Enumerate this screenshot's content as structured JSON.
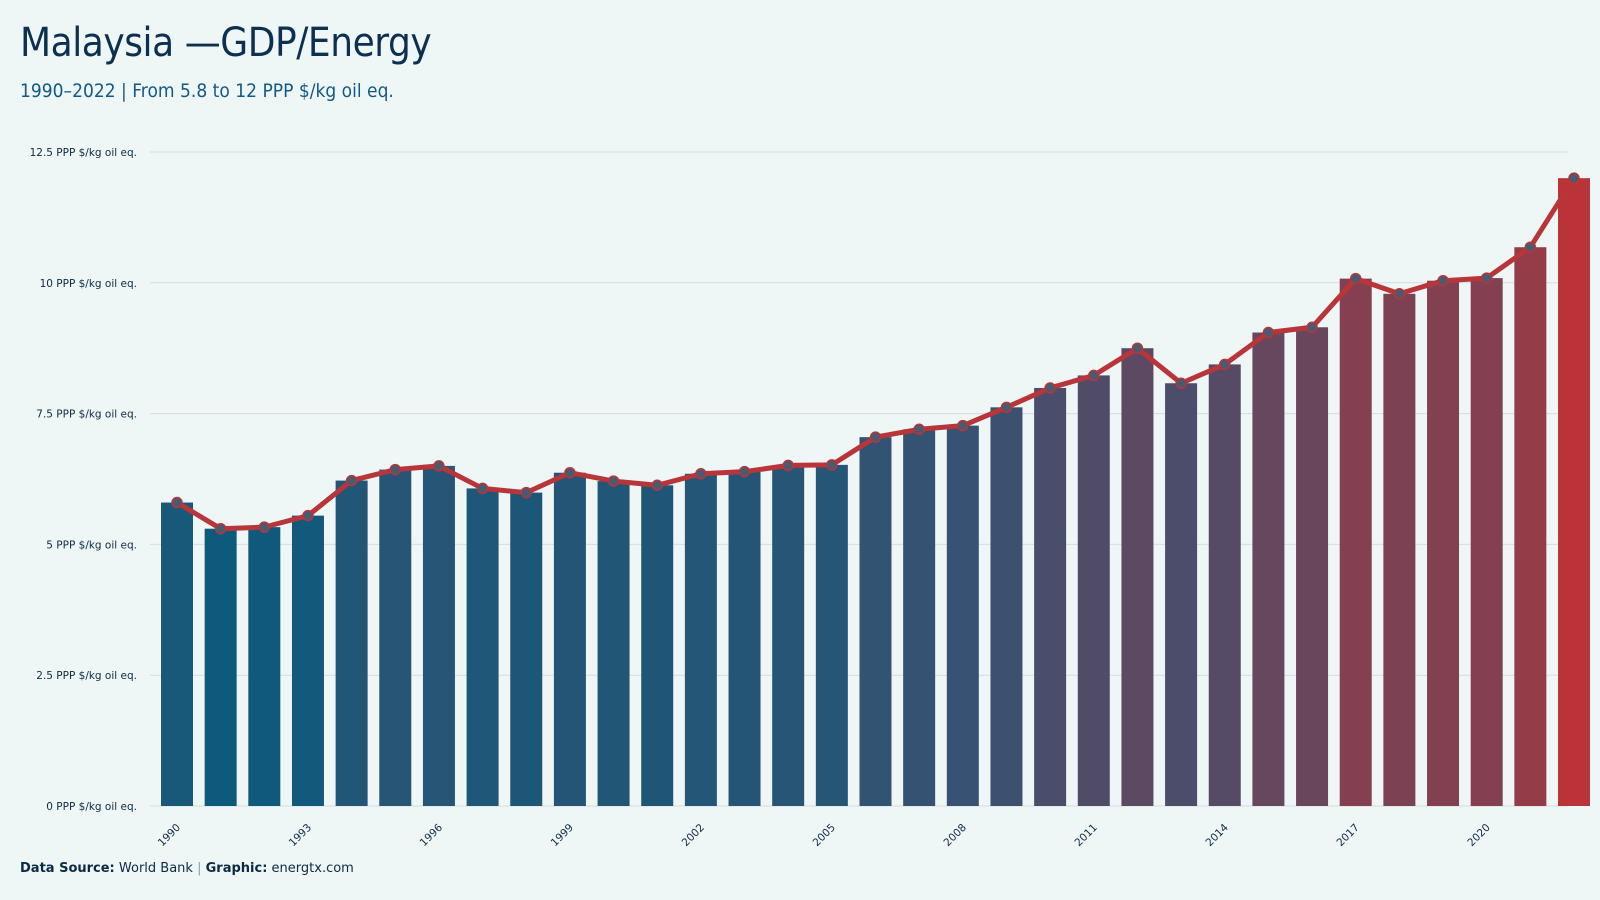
{
  "header": {
    "title": "Malaysia —GDP/Energy",
    "subtitle": "1990–2022 | From 5.8 to 12 PPP $/kg oil eq."
  },
  "footer": {
    "source_label": "Data Source:",
    "source_value": "World Bank",
    "separator": "|",
    "graphic_label": "Graphic:",
    "graphic_value": "energtx.com"
  },
  "chart_data": {
    "type": "bar",
    "x": [
      1990,
      1991,
      1992,
      1993,
      1994,
      1995,
      1996,
      1997,
      1998,
      1999,
      2000,
      2001,
      2002,
      2003,
      2004,
      2005,
      2006,
      2007,
      2008,
      2009,
      2010,
      2011,
      2012,
      2013,
      2014,
      2015,
      2016,
      2017,
      2018,
      2019,
      2020,
      2021,
      2022
    ],
    "values": [
      5.8,
      5.3,
      5.33,
      5.55,
      6.22,
      6.43,
      6.5,
      6.07,
      5.99,
      6.37,
      6.21,
      6.13,
      6.35,
      6.39,
      6.51,
      6.52,
      7.05,
      7.2,
      7.27,
      7.62,
      7.99,
      8.23,
      8.75,
      8.08,
      8.44,
      9.05,
      9.15,
      10.08,
      9.79,
      10.04,
      10.09,
      10.68,
      12.0
    ],
    "y_tick_values": [
      0,
      2.5,
      5,
      7.5,
      10,
      12.5
    ],
    "y_tick_labels": [
      "0 PPP $/kg oil eq.",
      "2.5 PPP $/kg oil eq.",
      "5 PPP $/kg oil eq.",
      "7.5 PPP $/kg oil eq.",
      "10 PPP $/kg oil eq.",
      "12.5 PPP $/kg oil eq."
    ],
    "x_tick_labels": [
      "1990",
      "1993",
      "1996",
      "1999",
      "2002",
      "2005",
      "2008",
      "2011",
      "2014",
      "2017",
      "2020"
    ],
    "ylim": [
      0,
      12.5
    ],
    "grid": true,
    "legend": "none",
    "overlay": "line with markers",
    "colors": {
      "low": "#0e5a7c",
      "mid": "#3f5070",
      "high": "#ba3338",
      "line": "#b8353a",
      "marker": "#4a5a70",
      "grid": "#d4dcde"
    }
  }
}
